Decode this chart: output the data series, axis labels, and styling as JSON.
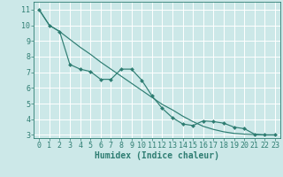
{
  "xlabel": "Humidex (Indice chaleur)",
  "bg_color": "#cce8e8",
  "grid_color": "#ffffff",
  "line_color": "#2e7d72",
  "xlim": [
    -0.5,
    23.5
  ],
  "ylim": [
    2.8,
    11.5
  ],
  "yticks": [
    3,
    4,
    5,
    6,
    7,
    8,
    9,
    10,
    11
  ],
  "xticks": [
    0,
    1,
    2,
    3,
    4,
    5,
    6,
    7,
    8,
    9,
    10,
    11,
    12,
    13,
    14,
    15,
    16,
    17,
    18,
    19,
    20,
    21,
    22,
    23
  ],
  "line1_x": [
    0,
    1,
    2,
    3,
    4,
    5,
    6,
    7,
    8,
    9,
    10,
    11,
    12,
    13,
    14,
    15,
    16,
    17,
    18,
    19,
    20,
    21,
    22,
    23
  ],
  "line1_y": [
    11.0,
    10.0,
    9.6,
    7.5,
    7.2,
    7.05,
    6.55,
    6.55,
    7.2,
    7.2,
    6.5,
    5.5,
    4.7,
    4.1,
    3.7,
    3.6,
    3.9,
    3.85,
    3.75,
    3.5,
    3.4,
    3.05,
    3.0,
    3.0
  ],
  "line2_x": [
    0,
    1,
    2,
    3,
    4,
    5,
    6,
    7,
    8,
    9,
    10,
    11,
    12,
    13,
    14,
    15,
    16,
    17,
    18,
    19,
    20,
    21,
    22,
    23
  ],
  "line2_y": [
    11.0,
    10.0,
    9.6,
    9.1,
    8.6,
    8.15,
    7.65,
    7.2,
    6.75,
    6.3,
    5.85,
    5.4,
    4.95,
    4.6,
    4.2,
    3.85,
    3.55,
    3.35,
    3.2,
    3.1,
    3.05,
    3.02,
    3.0,
    3.0
  ],
  "xlabel_fontsize": 7,
  "tick_fontsize": 6
}
